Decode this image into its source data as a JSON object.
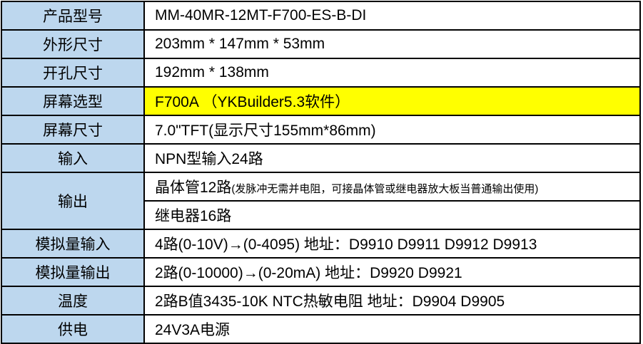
{
  "colors": {
    "page_bg": "#FFFFFF",
    "label_bg": "#BDD7EE",
    "highlight_bg": "#FFFF00",
    "border": "#000000",
    "text": "#000000"
  },
  "table": {
    "rows": [
      {
        "label": "产品型号",
        "value": "MM-40MR-12MT-F700-ES-B-DI"
      },
      {
        "label": "外形尺寸",
        "value": "203mm * 147mm * 53mm"
      },
      {
        "label": "开孔尺寸",
        "value": "192mm * 138mm"
      },
      {
        "label": "屏幕选型",
        "value": "F700A （YKBuilder5.3软件）",
        "highlight": true
      },
      {
        "label": "屏幕尺寸",
        "value": "7.0\"TFT(显示尺寸155mm*86mm)"
      },
      {
        "label": "输入",
        "value": "NPN型输入24路"
      },
      {
        "label": "输出",
        "value_main": "晶体管12路",
        "value_note": "(发脉冲无需并电阻，可接晶体管或继电器放大板当普通输出使用)",
        "value2": "继电器16路"
      },
      {
        "label": "模拟量输入",
        "value": "4路(0-10V)→(0-4095) 地址：D9910 D9911 D9912 D9913"
      },
      {
        "label": "模拟量输出",
        "value": "2路(0-10000)→(0-20mA) 地址：D9920 D9921"
      },
      {
        "label": "温度",
        "value": "2路B值3435-10K NTC热敏电阻 地址：D9904 D9905"
      },
      {
        "label": "供电",
        "value": "24V3A电源"
      }
    ]
  }
}
